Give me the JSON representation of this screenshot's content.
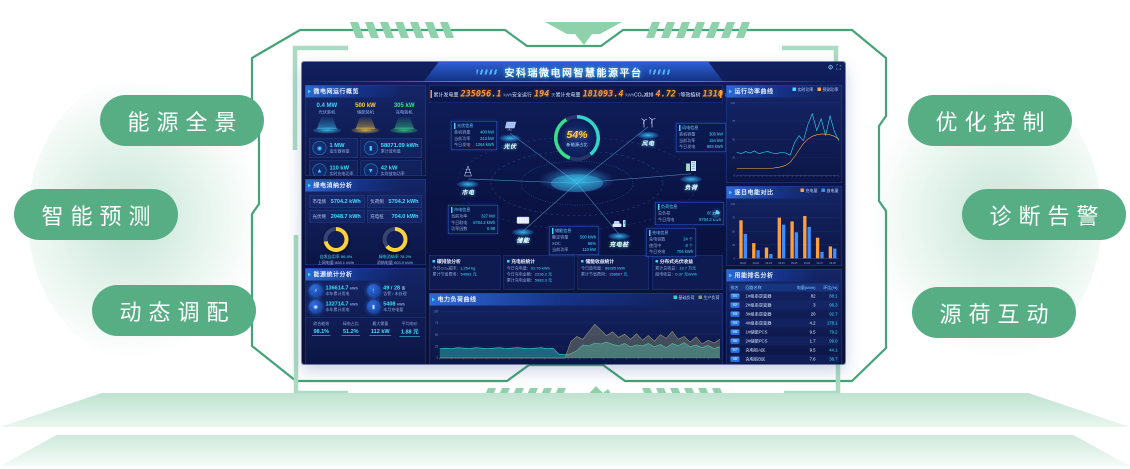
{
  "frame": {
    "labels_left": [
      "能源全景",
      "智能预测",
      "动态调配"
    ],
    "labels_right": [
      "优化控制",
      "诊断告警",
      "源荷互动"
    ],
    "pill_color": "#57ae85",
    "line_color": "#44a377",
    "stripe_color": "#8ed1ab",
    "bracket_color": "#aadcc3"
  },
  "dashboard": {
    "title": "安科瑞微电网智慧能源平台",
    "header_icons": [
      "gear-icon",
      "fullscreen-icon"
    ],
    "stat_strip": [
      {
        "label": "累计发电量",
        "value": "235056.1",
        "unit": "kWh"
      },
      {
        "label": "安全运行",
        "value": "194",
        "unit": "天"
      },
      {
        "label": "累计充电量",
        "value": "181093.4",
        "unit": "kWh"
      },
      {
        "label": "CO₂减排",
        "value": "4.72",
        "unit": "T"
      },
      {
        "label": "等效植树",
        "value": "1310",
        "unit": "棵"
      }
    ],
    "left": {
      "panel1": {
        "title": "微电网运行概览",
        "stations": [
          {
            "value": "0.4 MW",
            "label": "光伏装机",
            "color": "#3fd6ff"
          },
          {
            "value": "500 kW",
            "label": "储能装机",
            "color": "#ffd23c"
          },
          {
            "value": "305 kW",
            "label": "充电装机",
            "color": "#3ce08a"
          }
        ],
        "tiles": [
          {
            "icon": "meter-icon",
            "glyph": "◉",
            "value": "1 MW",
            "label": "变压器容量"
          },
          {
            "icon": "battery-icon",
            "glyph": "▮",
            "value": "58071.09 kWh",
            "label": "累计放电量"
          },
          {
            "icon": "charge-icon",
            "glyph": "▲",
            "value": "110 kW",
            "label": "实时充电功率"
          },
          {
            "icon": "discharge-icon",
            "glyph": "▼",
            "value": "42 kW",
            "label": "实时放电功率"
          }
        ]
      },
      "panel2": {
        "title": "绿电消纳分析",
        "stats": [
          {
            "label": "市电侧",
            "value": "5704.2 kWh"
          },
          {
            "label": "负荷侧",
            "value": "5704.2 kWh"
          },
          {
            "label": "光伏侧",
            "value": "2048.7 kWh"
          },
          {
            "label": "充电桩",
            "value": "704.0 kWh"
          }
        ],
        "gauges": [
          {
            "percent": 72,
            "color": "#ffd23c",
            "legend1": "自发自用率 86.4%",
            "legend2": "上网电量 868.1 kWh"
          },
          {
            "percent": 64,
            "color": "#ffd23c",
            "legend1": "绿电消纳率 78.2%",
            "legend2": "消纳电量 603.9 kWh"
          }
        ]
      },
      "panel3": {
        "title": "能源统计分析",
        "items": [
          {
            "icon": "plug-icon",
            "glyph": "⚡",
            "value": "136614.7",
            "unit": "kWh",
            "label": "本年累计用电"
          },
          {
            "icon": "alarm-icon",
            "glyph": "!",
            "value": "49 / 28",
            "unit": "条",
            "label": "告警 / 未处理"
          },
          {
            "icon": "solar-icon",
            "glyph": "◉",
            "value": "132714.7",
            "unit": "kWh",
            "label": "本年累计发电"
          },
          {
            "icon": "ev-icon",
            "glyph": "▮",
            "value": "5408",
            "unit": "kWh",
            "label": "本月充电量"
          }
        ],
        "footer": [
          {
            "label": "综合能效",
            "value": "98.1%"
          },
          {
            "label": "绿电占比",
            "value": "51.2%"
          },
          {
            "label": "最大需量",
            "value": "112 kW"
          },
          {
            "label": "平均电价",
            "value": "1.88 元"
          }
        ]
      }
    },
    "topology": {
      "center_value": "54%",
      "center_label": "新能源占比",
      "nodes": [
        {
          "id": "pv",
          "label": "光伏",
          "card_title": "光伏信息",
          "card": [
            [
              "装机容量",
              "400 kW"
            ],
            [
              "当前功率",
              "213 kW"
            ],
            [
              "今日发电",
              "1264 kWh"
            ]
          ]
        },
        {
          "id": "wind",
          "label": "风电",
          "card_title": "风电信息",
          "card": [
            [
              "装机容量",
              "300 kW"
            ],
            [
              "当前功率",
              "154 kW"
            ],
            [
              "今日发电",
              "983 kWh"
            ]
          ]
        },
        {
          "id": "grid",
          "label": "市电",
          "card_title": "市电信息",
          "card": [
            [
              "当前功率",
              "327 kW"
            ],
            [
              "今日取电",
              "5704.2 kWh"
            ],
            [
              "功率因数",
              "0.98"
            ]
          ]
        },
        {
          "id": "load",
          "label": "负荷",
          "card_title": "负荷信息",
          "gauge": "23%",
          "card": [
            [
              "总负荷",
              "685 kW"
            ],
            [
              "今日用电",
              "5704.2 kWh"
            ]
          ]
        },
        {
          "id": "storage",
          "label": "储能",
          "card_title": "储能信息",
          "card": [
            [
              "额定容量",
              "500 kWh"
            ],
            [
              "SOC",
              "86%"
            ],
            [
              "当前功率",
              "110 kW"
            ]
          ]
        },
        {
          "id": "charger",
          "label": "充电桩",
          "card_title": "充电信息",
          "card": [
            [
              "充电桩数",
              "24 个"
            ],
            [
              "使用中",
              "8 个"
            ],
            [
              "今日充电",
              "704 kWh"
            ]
          ]
        }
      ]
    },
    "mini_panels": [
      {
        "title": "碳排放分析",
        "rows": [
          [
            "今日CO₂减排",
            "1,264 kg"
          ],
          [
            "累计节省费用",
            "54581 元"
          ]
        ]
      },
      {
        "title": "充电桩统计",
        "rows": [
          [
            "今日充电量",
            "61.76 kWh"
          ],
          [
            "今日充电金额",
            "2226.2 元"
          ],
          [
            "累计充电金额",
            "5983.3 元"
          ]
        ]
      },
      {
        "title": "储能收益统计",
        "rows": [
          [
            "今日放电量",
            "88285 kWh"
          ],
          [
            "累计节省费用",
            "158667 元"
          ]
        ]
      },
      {
        "title": "分布式光伏收益",
        "rows": [
          [
            "累计总收益",
            "13.7 万元"
          ],
          [
            "度电收益",
            "0.37 元/kWh"
          ]
        ]
      }
    ],
    "right": {
      "panel3": {
        "title": "用能排名分析",
        "table": {
          "headers": [
            "排名",
            "回路名称",
            "电量(kWh)",
            "环比(%)"
          ],
          "rows": [
            [
              "01",
              "1#组串逆变器",
              "82",
              "88.1"
            ],
            [
              "02",
              "2#组串逆变器",
              "3",
              "96.3"
            ],
            [
              "03",
              "3#组串逆变器",
              "20",
              "92.7"
            ],
            [
              "04",
              "4#组串逆变器",
              "4.2",
              "178.1"
            ],
            [
              "05",
              "1#储能PCS",
              "9.5",
              "79.2"
            ],
            [
              "06",
              "2#储能PCS",
              "1.7",
              "99.0"
            ],
            [
              "07",
              "充电桩A区",
              "9.5",
              "44.1"
            ],
            [
              "08",
              "充电桩B区",
              "7.6",
              "38.7"
            ]
          ]
        }
      }
    }
  },
  "chart_data": [
    {
      "id": "power-curve",
      "type": "line",
      "title": "运行功率曲线",
      "ylim": [
        0,
        100
      ],
      "grid": true,
      "legend_position": "top-right",
      "series": [
        {
          "name": "实时功率",
          "color": "#2ee6ff",
          "values": [
            32,
            30,
            33,
            31,
            34,
            30,
            32,
            33,
            31,
            30,
            32,
            31,
            28,
            45,
            55,
            48,
            70,
            85,
            62,
            78,
            55,
            82,
            60,
            48
          ]
        },
        {
          "name": "预测功率",
          "color": "#ffaf45",
          "values": [
            10,
            10,
            10,
            10,
            10,
            10,
            10,
            10,
            10,
            11,
            12,
            14,
            18,
            26,
            35,
            44,
            50,
            54,
            56,
            57,
            57,
            56,
            54,
            50
          ]
        }
      ]
    },
    {
      "id": "daily-energy",
      "type": "bar",
      "title": "逐日电能对比",
      "ylim": [
        0,
        100
      ],
      "grid": true,
      "legend_position": "top-right",
      "categories": [
        "09-01",
        "09-02",
        "09-03",
        "09-04",
        "09-05",
        "09-06",
        "09-07",
        "09-08"
      ],
      "series": [
        {
          "name": "充电量",
          "color": "#ff9f3c",
          "values": [
            70,
            28,
            20,
            75,
            68,
            78,
            38,
            22
          ]
        },
        {
          "name": "放电量",
          "color": "#3c8dff",
          "values": [
            45,
            15,
            8,
            62,
            48,
            58,
            12,
            18
          ]
        }
      ]
    },
    {
      "id": "load-curve",
      "type": "area",
      "title": "电力负荷曲线",
      "ylim": [
        0,
        100
      ],
      "grid": true,
      "legend_position": "top-right",
      "series": [
        {
          "name": "基础负荷",
          "color": "#2fd6c8",
          "values": [
            20,
            21,
            20,
            22,
            21,
            20,
            22,
            21,
            20,
            21,
            22,
            20,
            21,
            22,
            21,
            20,
            21,
            22,
            20,
            21,
            8,
            7,
            9,
            16,
            28,
            26,
            32,
            30,
            34,
            29,
            26,
            31,
            24,
            28,
            26,
            31,
            24,
            29,
            22,
            31,
            26,
            33,
            24,
            28,
            22,
            27,
            20,
            24
          ]
        },
        {
          "name": "生产负荷",
          "color": "#8e9470",
          "values": [
            0,
            0,
            0,
            0,
            0,
            0,
            0,
            0,
            0,
            0,
            0,
            0,
            0,
            0,
            0,
            0,
            0,
            0,
            0,
            0,
            0,
            0,
            35,
            46,
            40,
            56,
            72,
            60,
            48,
            56,
            44,
            51,
            40,
            52,
            38,
            48,
            36,
            50,
            42,
            57,
            40,
            46,
            34,
            45,
            30,
            38,
            32,
            40
          ]
        }
      ]
    }
  ]
}
